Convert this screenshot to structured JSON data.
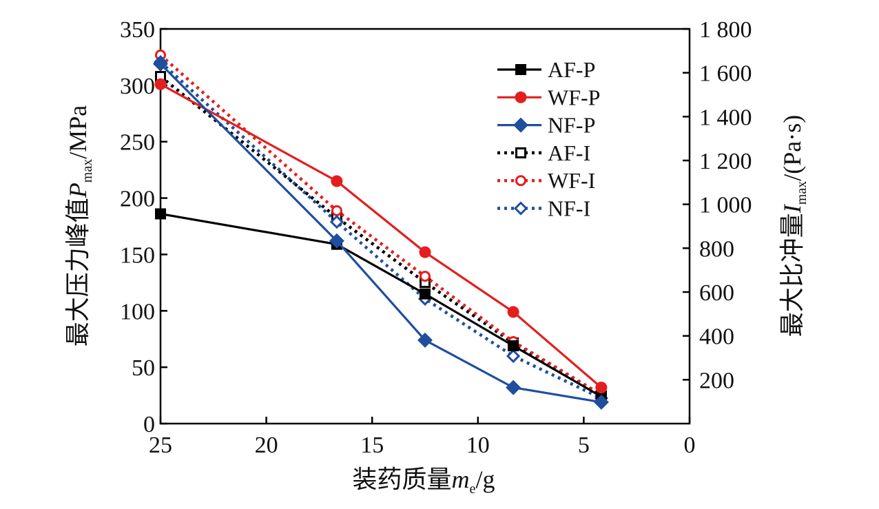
{
  "chart_data": {
    "type": "line",
    "xlabel": {
      "main": "装药质量",
      "var": "m",
      "sub": "e",
      "unit": "/g"
    },
    "ylabel_left": {
      "main": "最大压力峰值",
      "var": "P",
      "sub": "max",
      "unit": "/MPa"
    },
    "ylabel_right": {
      "main": "最大比冲量",
      "var": "I",
      "sub": "max",
      "unit": "/(Pa·s)"
    },
    "xlim": [
      25,
      0
    ],
    "xticks": [
      "25",
      "20",
      "15",
      "10",
      "5",
      "0"
    ],
    "xtick_values": [
      25,
      20,
      15,
      10,
      5,
      0
    ],
    "ylim_left": [
      0,
      350
    ],
    "yticks_left": [
      "0",
      "50",
      "100",
      "150",
      "200",
      "250",
      "300",
      "350"
    ],
    "ylim_right": [
      0,
      1800
    ],
    "yticks_right": [
      "200",
      "400",
      "600",
      "800",
      "1 000",
      "1 200",
      "1 400",
      "1 600",
      "1 800"
    ],
    "grid": false,
    "legend_position": "top-right",
    "x": [
      25,
      16.67,
      12.5,
      8.33,
      4.17
    ],
    "series": [
      {
        "name": "AF-P",
        "axis": "left",
        "color": "#000000",
        "style": "solid",
        "marker": "square-filled",
        "values": [
          186,
          159,
          115,
          69,
          24
        ]
      },
      {
        "name": "WF-P",
        "axis": "left",
        "color": "#e41e1e",
        "style": "solid",
        "marker": "circle-filled",
        "values": [
          301,
          215,
          152,
          99,
          32
        ]
      },
      {
        "name": "NF-P",
        "axis": "left",
        "color": "#1f4e9e",
        "style": "solid",
        "marker": "diamond-filled",
        "values": [
          319,
          162,
          74,
          32,
          19
        ]
      },
      {
        "name": "AF-I",
        "axis": "right",
        "color": "#000000",
        "style": "dotted",
        "marker": "square-open",
        "values": [
          1583,
          940,
          644,
          368,
          126
        ]
      },
      {
        "name": "WF-I",
        "axis": "right",
        "color": "#e41e1e",
        "style": "dotted",
        "marker": "circle-open",
        "values": [
          1681,
          971,
          672,
          374,
          132
        ]
      },
      {
        "name": "NF-I",
        "axis": "right",
        "color": "#1f4e9e",
        "style": "dotted",
        "marker": "diamond-open",
        "values": [
          1649,
          920,
          569,
          308,
          116
        ]
      }
    ]
  }
}
